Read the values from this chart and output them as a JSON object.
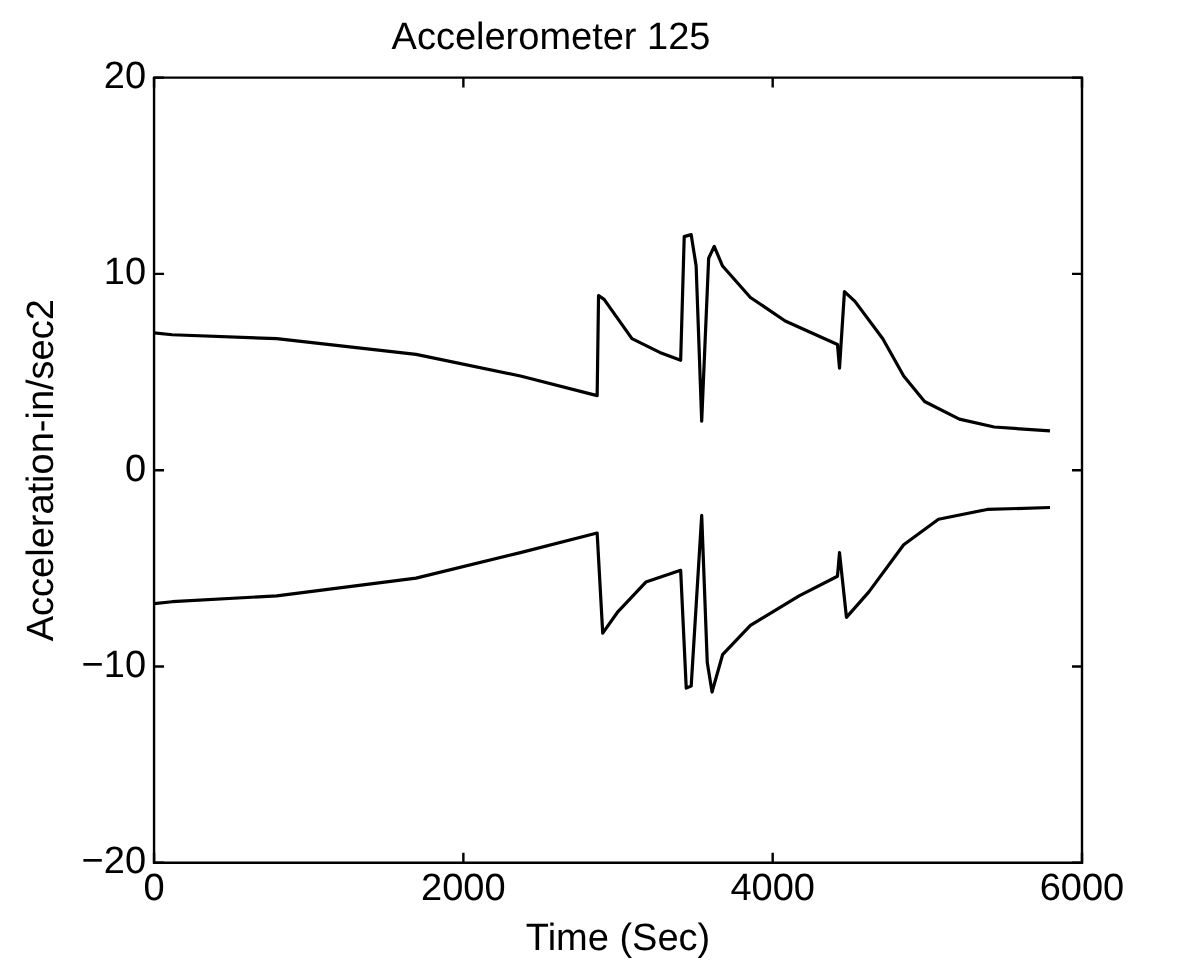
{
  "chart_data": {
    "type": "line",
    "title": "Accelerometer 125",
    "xlabel": "Time (Sec)",
    "ylabel": "Acceleration-in/sec2",
    "xlim": [
      0,
      6000
    ],
    "xticks": [
      0,
      2000,
      4000,
      6000
    ],
    "ylim": [
      -20,
      20
    ],
    "yticks": [
      -20,
      -10,
      0,
      10,
      20
    ],
    "grid": false,
    "legend": false,
    "marker": "none",
    "line_style": "solid",
    "series": [
      {
        "color": "#000000",
        "x": [
          0,
          117,
          793,
          1694,
          2369,
          2865,
          2874,
          2910,
          3090,
          3270,
          3405,
          3428,
          3473,
          3505,
          3541,
          3586,
          3622,
          3676,
          3856,
          4081,
          4419,
          4432,
          4464,
          4532,
          4712,
          4847,
          4982,
          5207,
          5432,
          5793
        ],
        "values": [
          7.0,
          6.9,
          6.7,
          5.9,
          4.8,
          3.8,
          8.9,
          8.7,
          6.7,
          6.0,
          5.6,
          11.9,
          12.0,
          10.4,
          2.5,
          10.8,
          11.4,
          10.4,
          8.8,
          7.6,
          6.4,
          5.2,
          9.1,
          8.6,
          6.7,
          4.8,
          3.5,
          2.6,
          2.2,
          2.0
        ]
      },
      {
        "color": "#000000",
        "x": [
          0,
          117,
          793,
          1694,
          2369,
          2865,
          2901,
          3000,
          3180,
          3405,
          3441,
          3473,
          3541,
          3577,
          3608,
          3676,
          3856,
          4171,
          4419,
          4432,
          4477,
          4622,
          4847,
          5072,
          5387,
          5793
        ],
        "values": [
          -6.8,
          -6.7,
          -6.4,
          -5.5,
          -4.2,
          -3.2,
          -8.3,
          -7.2,
          -5.7,
          -5.1,
          -11.1,
          -11.0,
          -2.3,
          -9.8,
          -11.3,
          -9.4,
          -7.9,
          -6.4,
          -5.4,
          -4.2,
          -7.5,
          -6.2,
          -3.8,
          -2.5,
          -2.0,
          -1.9
        ]
      }
    ]
  }
}
